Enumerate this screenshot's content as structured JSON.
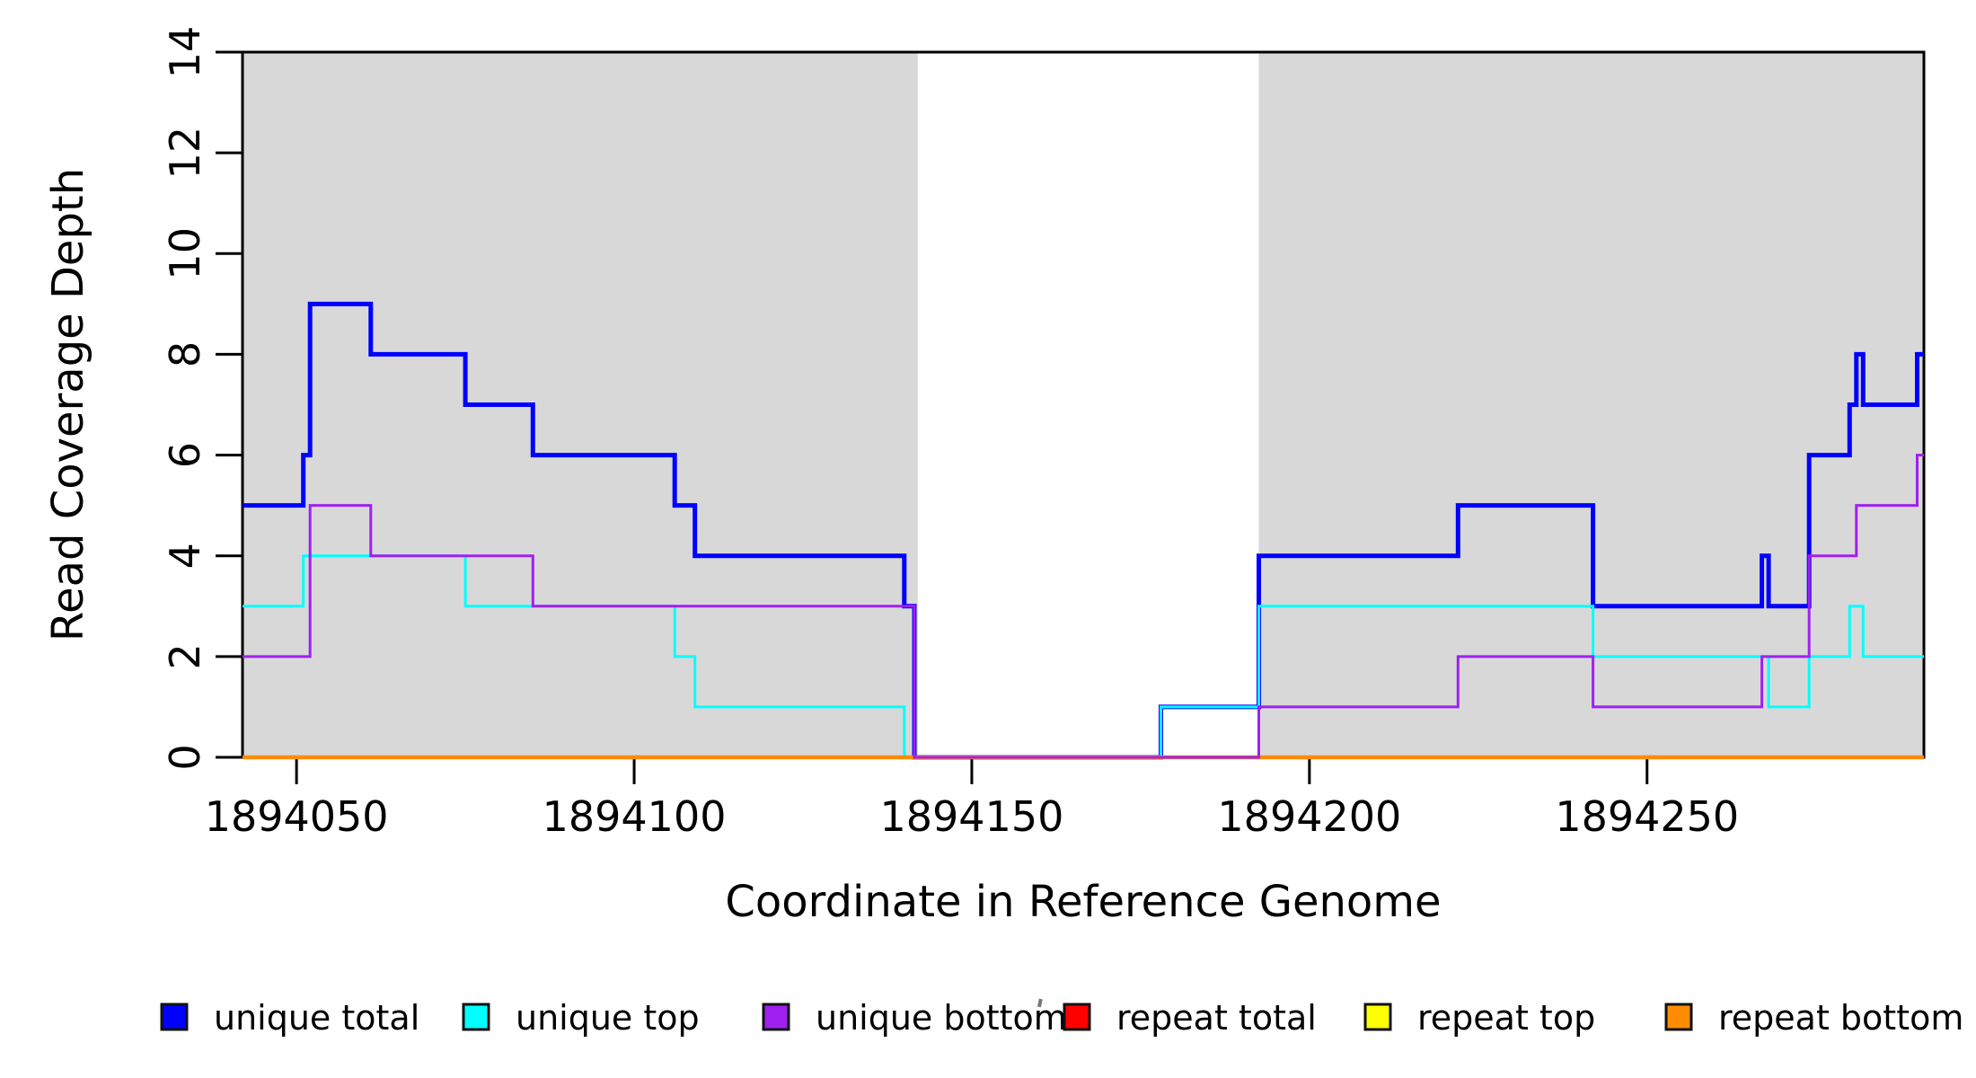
{
  "figure": {
    "background": "#FFFFFF",
    "frame_color": "#000000",
    "band_color": "#D8D8D8"
  },
  "chart_data": {
    "type": "line",
    "subtype": "step-post",
    "title": "",
    "xlabel": "Coordinate in Reference Genome",
    "ylabel": "Read Coverage Depth",
    "xlim": [
      1894042,
      1894291
    ],
    "ylim": [
      0,
      14
    ],
    "grid": false,
    "legend_position": "bottom",
    "xticks": [
      1894050,
      1894100,
      1894150,
      1894200,
      1894250
    ],
    "xtick_labels": [
      "1894050",
      "1894100",
      "1894150",
      "1894200",
      "1894250"
    ],
    "yticks": [
      0,
      2,
      4,
      6,
      8,
      10,
      12,
      14
    ],
    "ytick_labels": [
      "0",
      "2",
      "4",
      "6",
      "8",
      "10",
      "12",
      "14"
    ],
    "shaded_regions": {
      "color": "#D8D8D8",
      "ranges": [
        [
          1894042,
          1894142
        ],
        [
          1894192.5,
          1894291
        ]
      ]
    },
    "series": [
      {
        "name": "unique total",
        "color": "#0000FF",
        "line_width": 5,
        "points": [
          [
            1894042,
            5
          ],
          [
            1894051,
            6
          ],
          [
            1894052,
            9
          ],
          [
            1894061,
            8
          ],
          [
            1894075,
            7
          ],
          [
            1894085,
            6
          ],
          [
            1894106,
            5
          ],
          [
            1894109,
            4
          ],
          [
            1894140,
            3
          ],
          [
            1894141.5,
            0
          ],
          [
            1894178,
            1
          ],
          [
            1894192.5,
            4
          ],
          [
            1894222,
            5
          ],
          [
            1894242,
            3
          ],
          [
            1894267,
            4
          ],
          [
            1894268,
            3
          ],
          [
            1894274,
            6
          ],
          [
            1894280,
            7
          ],
          [
            1894281,
            8
          ],
          [
            1894282,
            7
          ],
          [
            1894290,
            8
          ]
        ]
      },
      {
        "name": "unique top",
        "color": "#00FFFF",
        "line_width": 3,
        "points": [
          [
            1894042,
            3
          ],
          [
            1894051,
            4
          ],
          [
            1894075,
            3
          ],
          [
            1894106,
            2
          ],
          [
            1894109,
            1
          ],
          [
            1894140,
            0
          ],
          [
            1894178,
            1
          ],
          [
            1894192.5,
            3
          ],
          [
            1894242,
            2
          ],
          [
            1894268,
            1
          ],
          [
            1894274,
            2
          ],
          [
            1894280,
            3
          ],
          [
            1894282,
            2
          ]
        ]
      },
      {
        "name": "unique bottom",
        "color": "#A020F0",
        "line_width": 3,
        "points": [
          [
            1894042,
            2
          ],
          [
            1894052,
            5
          ],
          [
            1894061,
            4
          ],
          [
            1894085,
            3
          ],
          [
            1894141.5,
            0
          ],
          [
            1894192.5,
            1
          ],
          [
            1894222,
            2
          ],
          [
            1894242,
            1
          ],
          [
            1894267,
            2
          ],
          [
            1894274,
            4
          ],
          [
            1894281,
            5
          ],
          [
            1894290,
            6
          ]
        ]
      },
      {
        "name": "repeat total",
        "color": "#FF0000",
        "line_width": 3,
        "points": [
          [
            1894042,
            0
          ]
        ]
      },
      {
        "name": "repeat top",
        "color": "#FFFF00",
        "line_width": 3,
        "points": [
          [
            1894042,
            0
          ]
        ]
      },
      {
        "name": "repeat bottom",
        "color": "#FF8C00",
        "line_width": 4.5,
        "points": [
          [
            1894042,
            0
          ]
        ]
      }
    ],
    "draw_order": [
      "unique total",
      "unique top",
      "repeat total",
      "repeat top",
      "repeat bottom",
      "unique bottom"
    ]
  },
  "legend": {
    "items": [
      {
        "label": "unique total",
        "color": "#0000FF"
      },
      {
        "label": "unique top",
        "color": "#00FFFF"
      },
      {
        "label": "unique bottom",
        "color": "#A020F0"
      },
      {
        "label": "repeat total",
        "color": "#FF0000"
      },
      {
        "label": "repeat top",
        "color": "#FFFF00"
      },
      {
        "label": "repeat bottom",
        "color": "#FF8C00"
      }
    ],
    "swatch_border_color": "#111111"
  }
}
